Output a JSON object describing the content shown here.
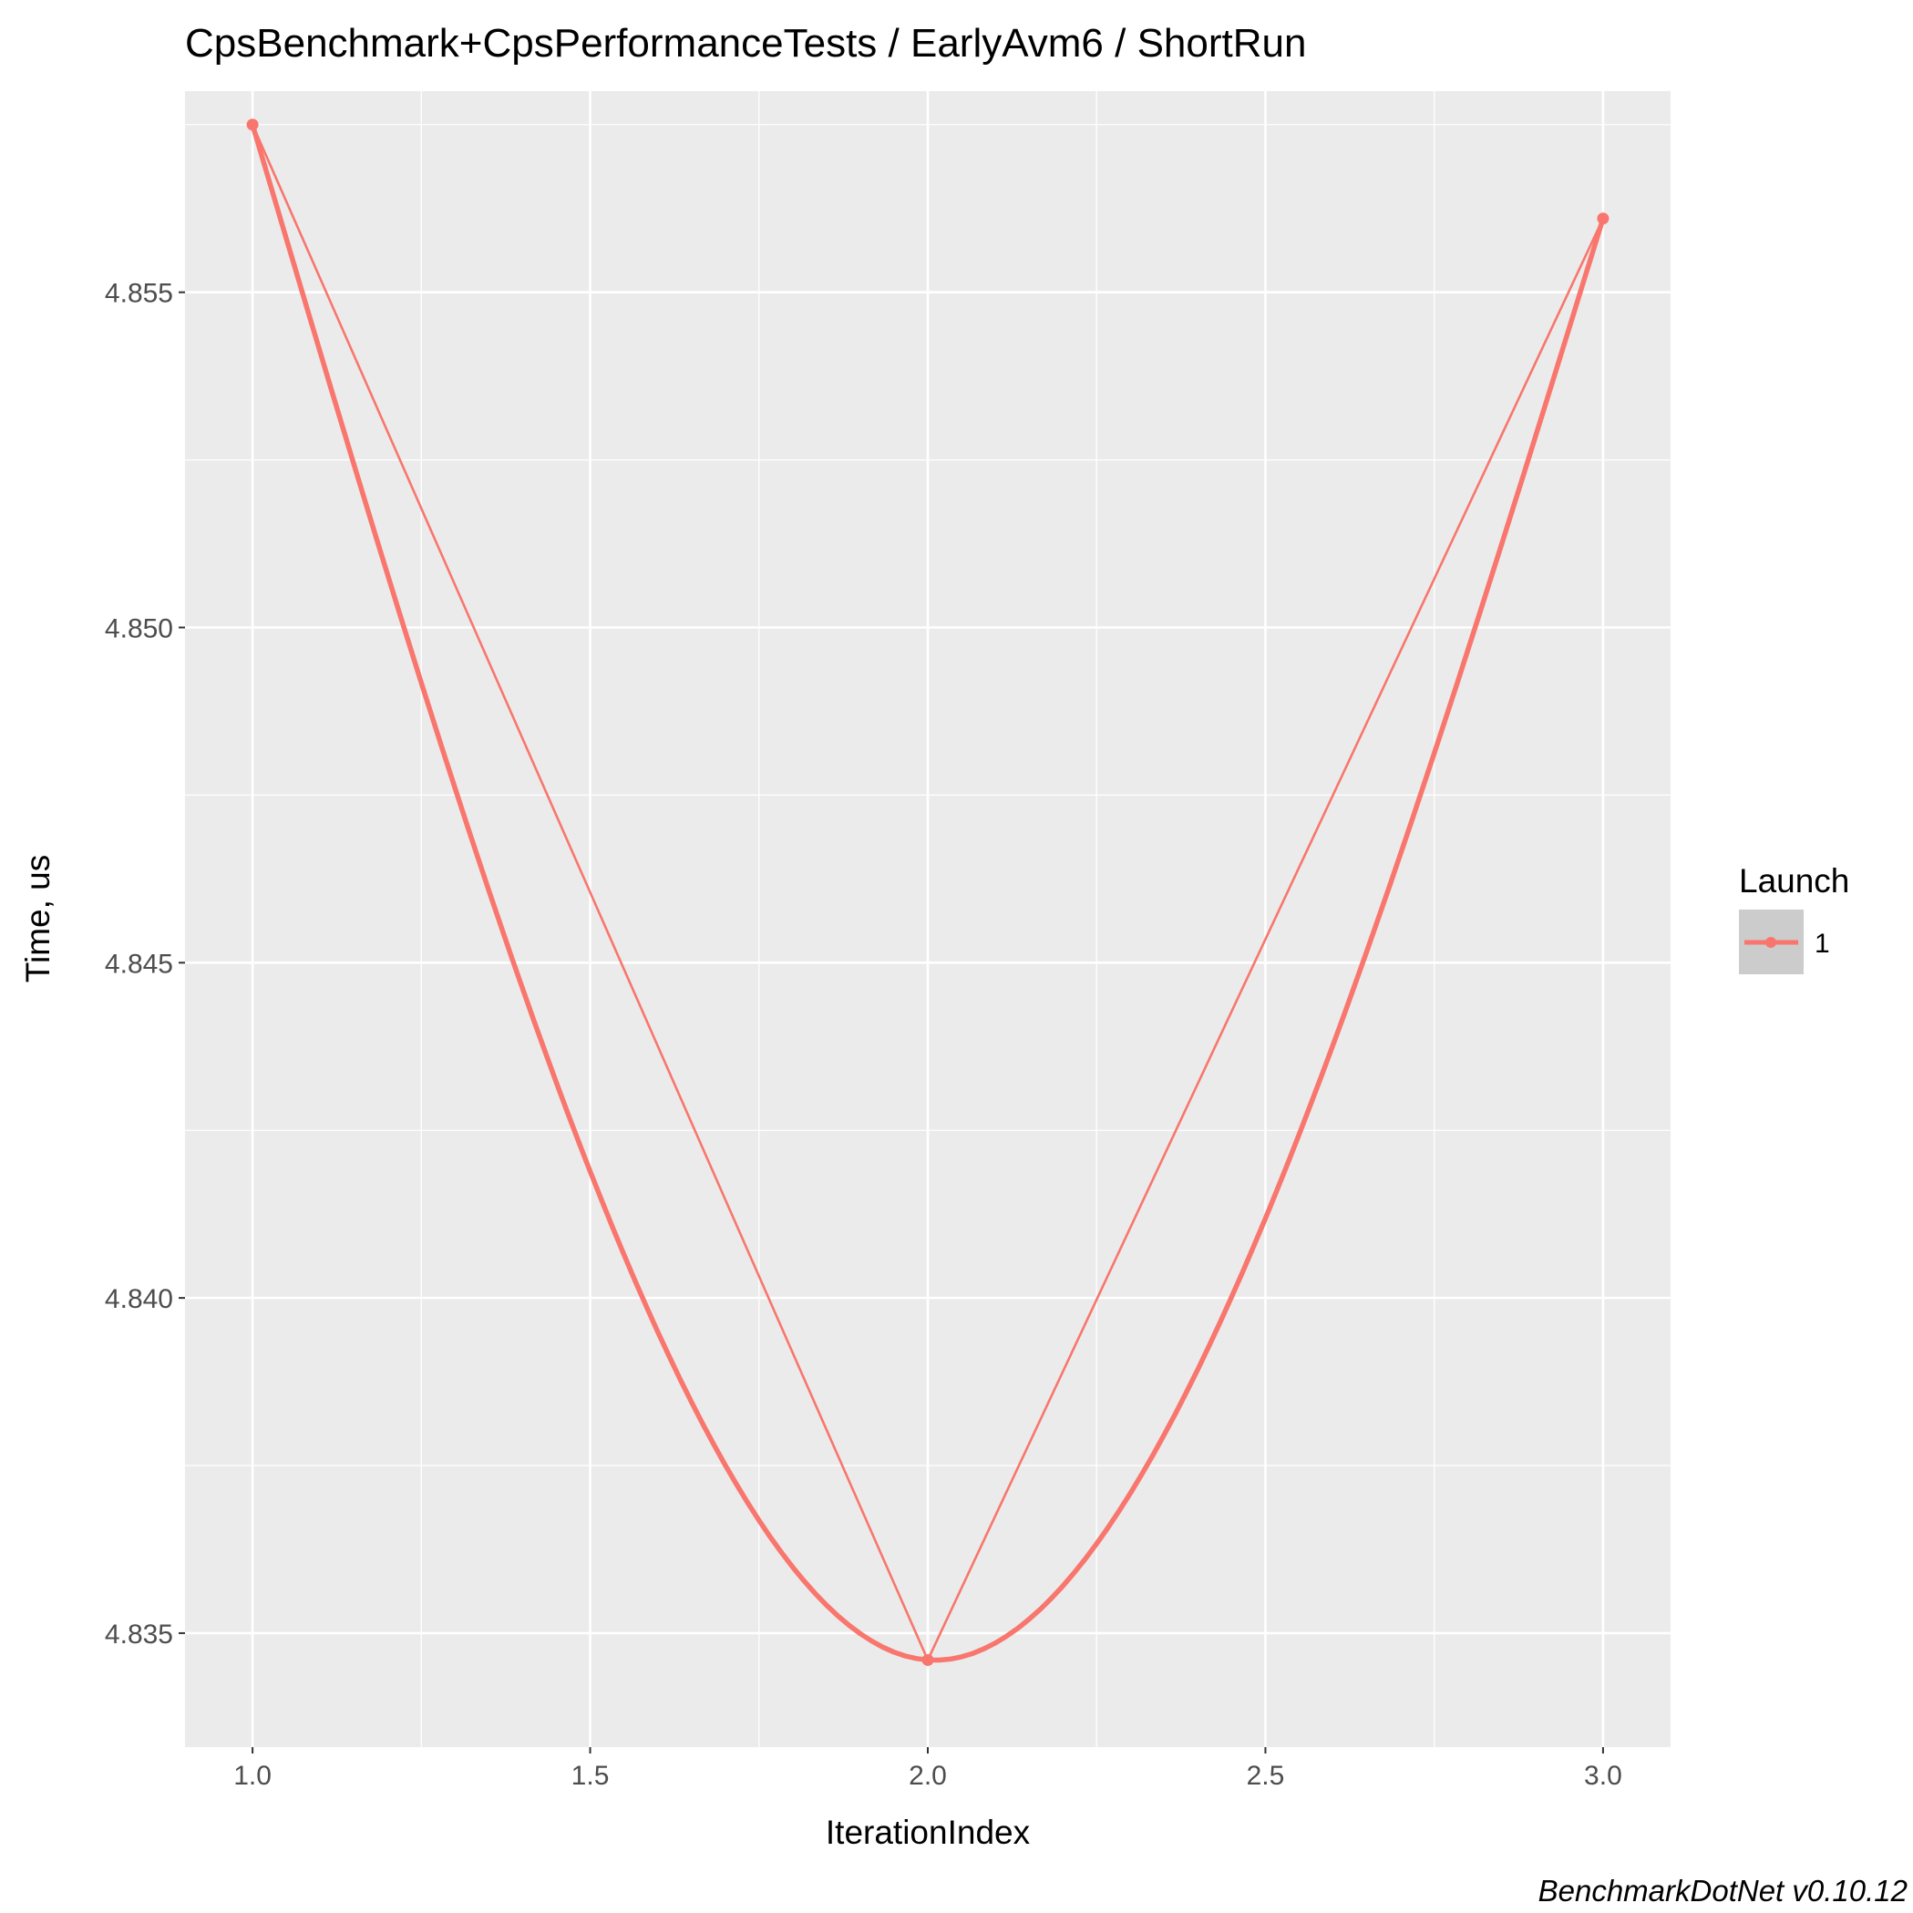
{
  "chart_data": {
    "type": "line",
    "title": "CpsBenchmark+CpsPerformanceTests / EarlyAvm6 / ShortRun",
    "xlabel": "IterationIndex",
    "ylabel": "Time, us",
    "caption": "BenchmarkDotNet v0.10.12",
    "x_ticks": [
      "1.0",
      "1.5",
      "2.0",
      "2.5",
      "3.0"
    ],
    "y_ticks": [
      "4.835",
      "4.840",
      "4.845",
      "4.850",
      "4.855"
    ],
    "xlim": [
      0.9,
      3.1
    ],
    "ylim": [
      4.8333,
      4.858
    ],
    "grid": true,
    "legend": {
      "title": "Launch",
      "position": "right",
      "entries": [
        "1"
      ]
    },
    "series": [
      {
        "name": "1",
        "color": "#F8766D",
        "x": [
          1,
          2,
          3
        ],
        "y": [
          4.8575,
          4.8346,
          4.8561
        ],
        "smooth": true
      }
    ]
  }
}
